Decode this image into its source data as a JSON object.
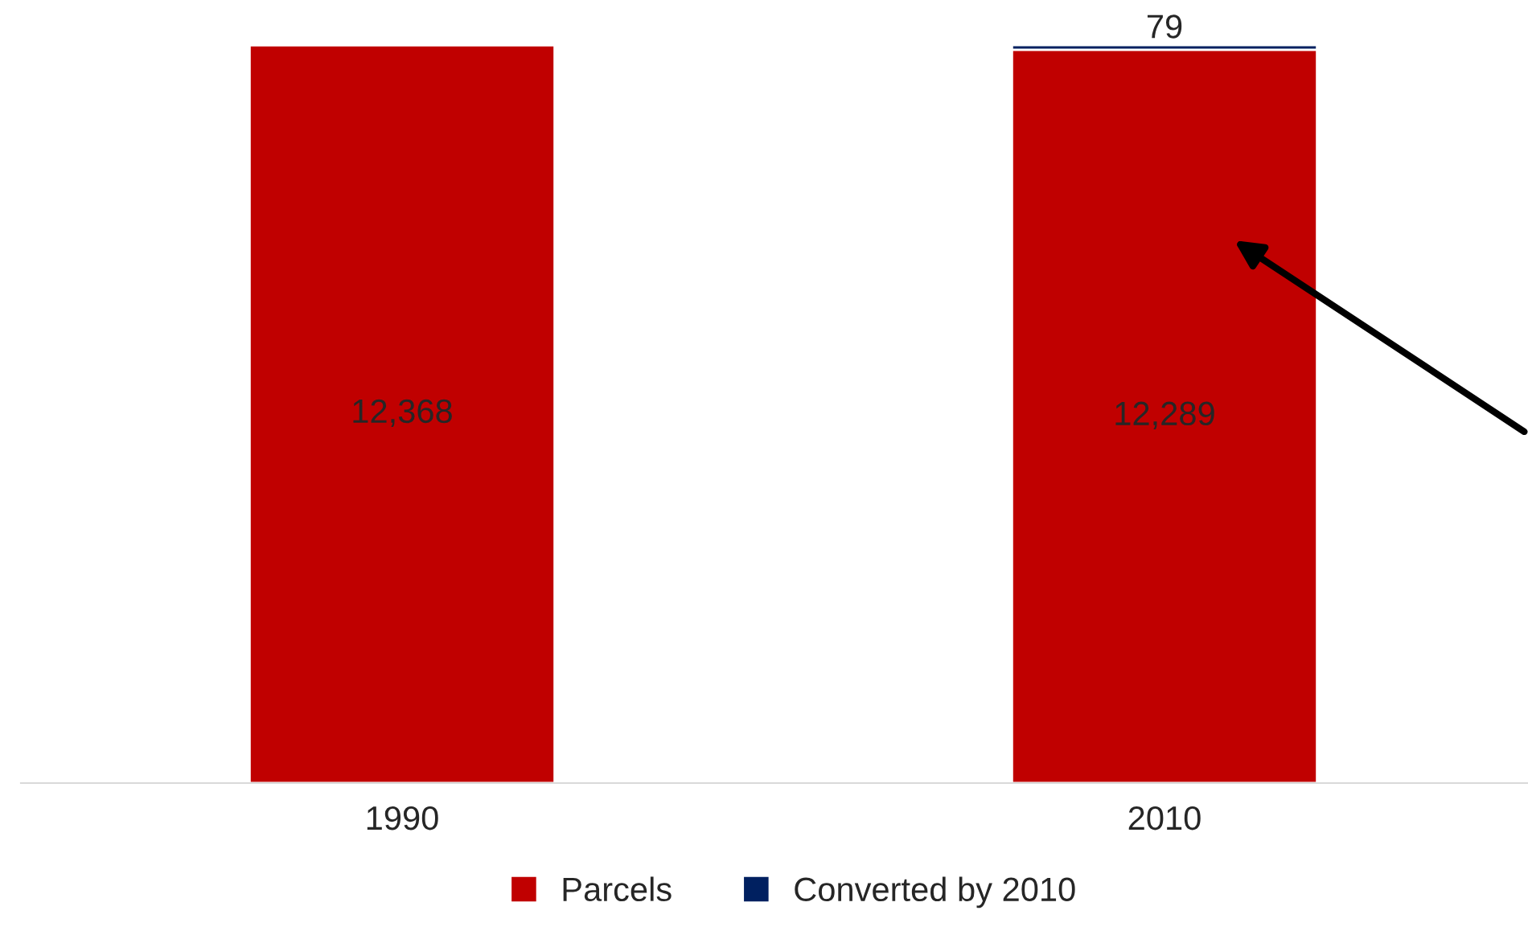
{
  "chart_data": {
    "type": "bar",
    "stacked": true,
    "categories": [
      "1990",
      "2010"
    ],
    "series": [
      {
        "name": "Parcels",
        "color": "#c00000",
        "values": [
          12368,
          12289
        ],
        "value_labels": [
          "12,368",
          "12,289"
        ]
      },
      {
        "name": "Converted by 2010",
        "color": "#002060",
        "values": [
          null,
          79
        ],
        "value_labels": [
          null,
          "79"
        ]
      }
    ],
    "legend": "bottom"
  }
}
